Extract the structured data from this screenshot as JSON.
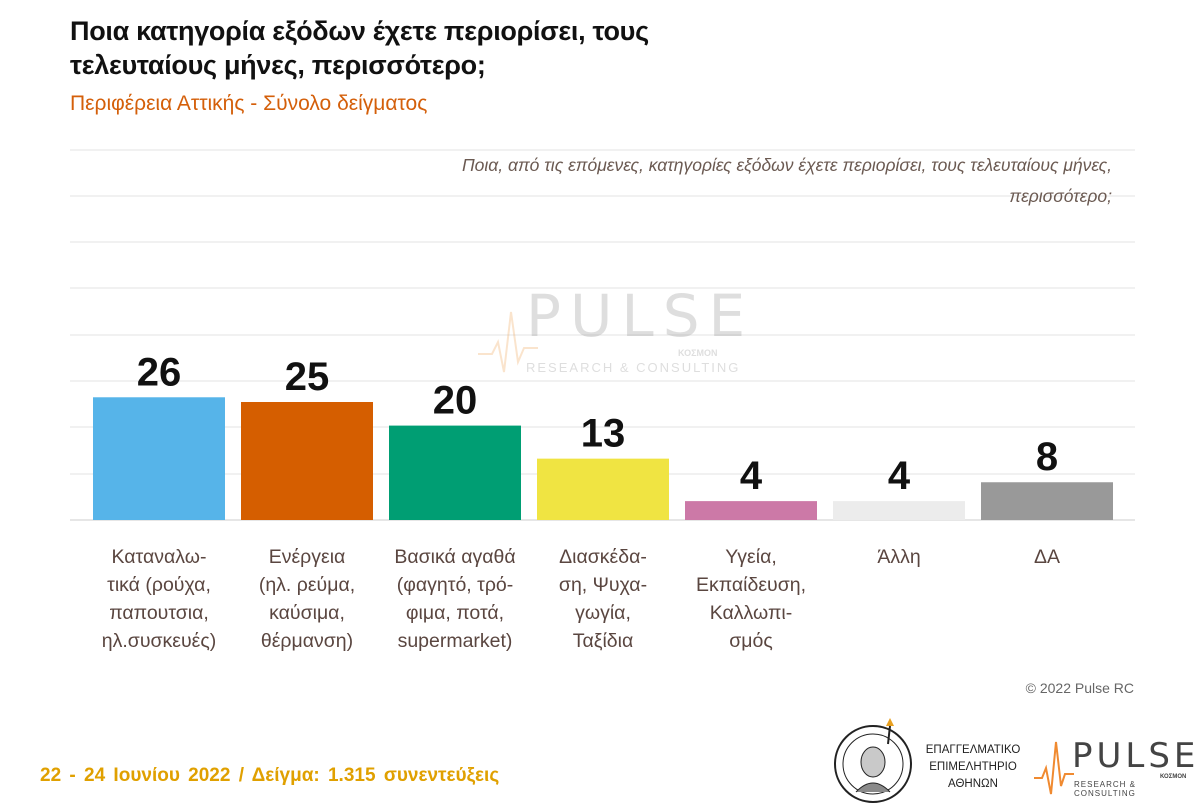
{
  "header": {
    "title_line1": "Ποια κατηγορία εξόδων έχετε περιορίσει, τους",
    "title_line2": "τελευταίους μήνες, περισσότερο;",
    "subtitle": "Περιφέρεια Αττικής - Σύνολο δείγματος"
  },
  "question": {
    "line1": "Ποια, από τις επόμενες, κατηγορίες εξόδων έχετε περιορίσει, τους τελευταίους μήνες,",
    "line2": "περισσότερο;"
  },
  "chart_data": {
    "type": "bar",
    "categories": [
      [
        "Καταναλω-",
        "τικά (ρούχα,",
        "παπουτσια,",
        "ηλ.συσκευές)"
      ],
      [
        "Ενέργεια",
        "(ηλ. ρεύμα,",
        "καύσιμα,",
        "θέρμανση)"
      ],
      [
        "Βασικά αγαθά",
        "(φαγητό, τρό-",
        "φιμα, ποτά,",
        "supermarket)"
      ],
      [
        "Διασκέδα-",
        "ση, Ψυχα-",
        "γωγία,",
        "Ταξίδια"
      ],
      [
        "Υγεία,",
        "Εκπαίδευση,",
        "Καλλωπι-",
        "σμός"
      ],
      [
        "Άλλη"
      ],
      [
        "ΔΑ"
      ]
    ],
    "values": [
      26,
      25,
      20,
      13,
      4,
      4,
      8
    ],
    "colors": [
      "#56b4e9",
      "#d55e00",
      "#009e73",
      "#f0e442",
      "#cc79a7",
      "#ececec",
      "#999999"
    ],
    "ylim": [
      0,
      80
    ],
    "grid": true,
    "data_labels": true
  },
  "watermark": {
    "main": "PULSE",
    "sub": "RESEARCH & CONSULTING",
    "kosmos": "ΚΟΣΜΟΝ"
  },
  "footer": {
    "copyright": "© 2022 Pulse RC",
    "date_sample": "22 - 24 Ιουνίου 2022 / Δείγμα: 1.315 συνεντεύξεις"
  },
  "logos": {
    "chamber_line1": "ΕΠΑΓΓΕΛΜΑΤΙΚΟ",
    "chamber_line2": "ΕΠΙΜΕΛΗΤΗΡΙΟ",
    "chamber_line3": "ΑΘΗΝΩΝ",
    "seal_text": "ΠΡΟΜΗΘΕΥΣ",
    "pulse_main": "PULSE",
    "pulse_sub": "RESEARCH & CONSULTING",
    "pulse_kosmos": "ΚΟΣΜΟΝ"
  }
}
